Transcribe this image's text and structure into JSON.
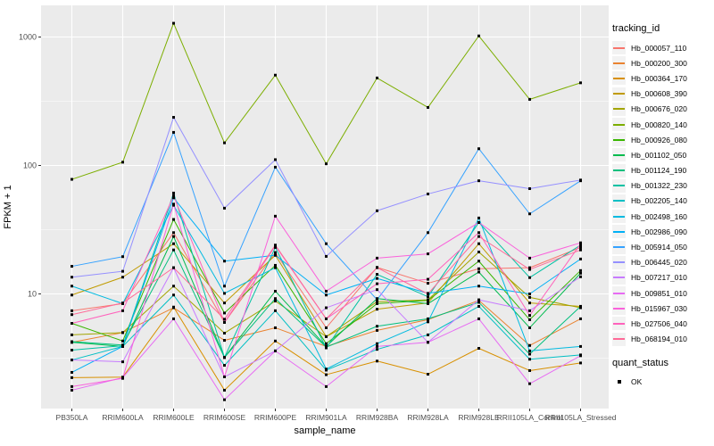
{
  "chart_data": {
    "type": "line",
    "title": "",
    "xlabel": "sample_name",
    "ylabel": "FPKM + 1",
    "y_scale": "log10",
    "ylim": [
      1.3,
      1800
    ],
    "y_ticks": [
      10,
      100,
      1000
    ],
    "y_tick_labels": [
      "10",
      "100",
      "1000"
    ],
    "y_minor_ticks": [
      3.162,
      31.62,
      316.2
    ],
    "grid": "white major and minor gridlines on gray panel",
    "panel_bg": "#EBEBEB",
    "legend_position": "right",
    "point_marker": "small black square",
    "categories": [
      "PB350LA",
      "RRIM600LA",
      "RRIM600LE",
      "RRIM600SE",
      "RRIM600PE",
      "RRIM901LA",
      "RRIM928BA",
      "RRIM928LA",
      "RRIM928LE",
      "RRII105LA_Control",
      "RRII105LA_Stressed"
    ],
    "series": [
      {
        "name": "Hb_000057_110",
        "color": "#F8766D",
        "values": [
          7.4,
          8.4,
          30,
          6.0,
          21,
          5.45,
          16.1,
          12.1,
          15.7,
          16,
          23
        ]
      },
      {
        "name": "Hb_000200_300",
        "color": "#EA8331",
        "values": [
          4.2,
          5.0,
          7.8,
          4.35,
          5.45,
          3.9,
          5.2,
          6.3,
          8.9,
          3.97,
          6.4
        ]
      },
      {
        "name": "Hb_000364_170",
        "color": "#D89000",
        "values": [
          2.23,
          2.25,
          7.9,
          1.78,
          4.3,
          2.35,
          3.0,
          2.37,
          3.77,
          2.53,
          2.9
        ]
      },
      {
        "name": "Hb_000608_390",
        "color": "#C09B00",
        "values": [
          9.8,
          13.5,
          24.6,
          8.5,
          20,
          4.65,
          7.6,
          8.5,
          24.6,
          8.5,
          8.0
        ]
      },
      {
        "name": "Hb_000676_020",
        "color": "#A3A500",
        "values": [
          4.8,
          5.0,
          11.5,
          4.95,
          8.8,
          4.65,
          8.7,
          9.0,
          21.2,
          9.4,
          7.8
        ]
      },
      {
        "name": "Hb_000820_140",
        "color": "#7CAE00",
        "values": [
          78,
          106,
          1280,
          150,
          505,
          103,
          480,
          283,
          1020,
          327,
          440
        ]
      },
      {
        "name": "Hb_000926_080",
        "color": "#39B600",
        "values": [
          5.9,
          4.3,
          38,
          7.1,
          16.7,
          4.1,
          8.4,
          8.9,
          18,
          6.3,
          15.2
        ]
      },
      {
        "name": "Hb_001102_050",
        "color": "#00BB4E",
        "values": [
          4.2,
          3.9,
          28,
          3.2,
          10.5,
          3.9,
          9.2,
          8.4,
          14.8,
          5.45,
          14.5
        ]
      },
      {
        "name": "Hb_001124_190",
        "color": "#00BF7D",
        "values": [
          4.25,
          4.0,
          22,
          3.2,
          9.2,
          3.85,
          5.6,
          6.4,
          8.6,
          3.4,
          8.0
        ]
      },
      {
        "name": "Hb_001322_230",
        "color": "#00C1A3",
        "values": [
          3.65,
          3.95,
          61,
          3.2,
          23,
          3.8,
          14.2,
          9.5,
          36,
          13.4,
          24
        ]
      },
      {
        "name": "Hb_002205_140",
        "color": "#00BFC4",
        "values": [
          3.06,
          3.9,
          9.8,
          2.78,
          7.4,
          2.55,
          3.7,
          4.8,
          8.0,
          3.1,
          3.35
        ]
      },
      {
        "name": "Hb_002498_160",
        "color": "#00BAE0",
        "values": [
          11.5,
          8.4,
          49,
          10.1,
          16,
          2.6,
          4.1,
          6.06,
          39,
          3.6,
          3.9
        ]
      },
      {
        "name": "Hb_002986_090",
        "color": "#00B0F6",
        "values": [
          2.45,
          3.9,
          56,
          18,
          20,
          9.8,
          13.2,
          10.1,
          11.5,
          10,
          18.7
        ]
      },
      {
        "name": "Hb_005914_050",
        "color": "#35A2FF",
        "values": [
          16.4,
          19.5,
          181,
          11.5,
          97,
          24.6,
          9.0,
          30,
          135,
          42,
          76
        ]
      },
      {
        "name": "Hb_006445_020",
        "color": "#9590FF",
        "values": [
          13.5,
          15,
          237,
          46.5,
          111,
          19.6,
          44.4,
          60,
          76,
          66,
          77
        ]
      },
      {
        "name": "Hb_007217_010",
        "color": "#C77CFF",
        "values": [
          3.06,
          2.96,
          16,
          2.26,
          3.6,
          7.8,
          10.8,
          4.2,
          9.0,
          7.4,
          13.6
        ]
      },
      {
        "name": "Hb_009851_010",
        "color": "#E76BF3",
        "values": [
          1.78,
          2.23,
          6.4,
          1.5,
          3.6,
          1.9,
          3.9,
          4.2,
          6.4,
          2.0,
          3.3
        ]
      },
      {
        "name": "Hb_015967_030",
        "color": "#FA62DB",
        "values": [
          1.9,
          2.2,
          50,
          2.26,
          40.3,
          10.5,
          19,
          20.5,
          36,
          19,
          25
        ]
      },
      {
        "name": "Hb_027506_040",
        "color": "#FF62BC",
        "values": [
          5.9,
          7.4,
          58,
          6.0,
          23.7,
          6.4,
          12,
          13,
          30,
          6.8,
          24.5
        ]
      },
      {
        "name": "Hb_068194_010",
        "color": "#FF6A98",
        "values": [
          6.9,
          8.5,
          16,
          6.35,
          24,
          6.4,
          16,
          10,
          28,
          15.5,
          22
        ]
      }
    ]
  },
  "legend": {
    "tracking_title": "tracking_id",
    "quant_title": "quant_status",
    "quant_items": [
      {
        "label": "OK",
        "marker": "black-square"
      }
    ]
  }
}
